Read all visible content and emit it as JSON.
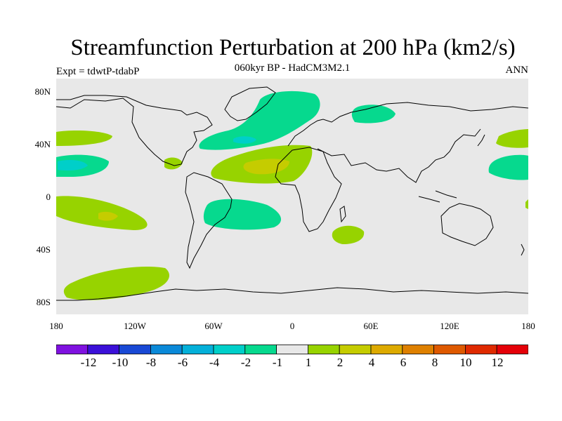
{
  "title": "Streamfunction Perturbation at 200 hPa (km2/s)",
  "subtitle": "060kyr BP - HadCM3M2.1",
  "left_label": "Expt = tdwtP-tdabP",
  "right_label": "ANN",
  "lat_labels": [
    "80N",
    "40N",
    "0",
    "40S",
    "80S"
  ],
  "lon_labels": [
    "180",
    "120W",
    "60W",
    "0",
    "60E",
    "120E",
    "180"
  ],
  "colorbar": {
    "colors": [
      "#7f11e0",
      "#3b10d8",
      "#1949d5",
      "#0a89d8",
      "#04b0d9",
      "#00cfc9",
      "#06d98e",
      "#e8e8e8",
      "#97d300",
      "#c5cc00",
      "#ddaa00",
      "#de8000",
      "#de5900",
      "#df2a00",
      "#e40008"
    ],
    "labels": [
      "-12",
      "-10",
      "-8",
      "-6",
      "-4",
      "-2",
      "-1",
      "1",
      "2",
      "4",
      "6",
      "8",
      "10",
      "12"
    ]
  },
  "map_colors": {
    "land_background": "#e8e8e8",
    "negative": "#06d98e",
    "negative_strong": "#00cfc9",
    "positive": "#97d300",
    "positive_strong": "#c5cc00"
  }
}
